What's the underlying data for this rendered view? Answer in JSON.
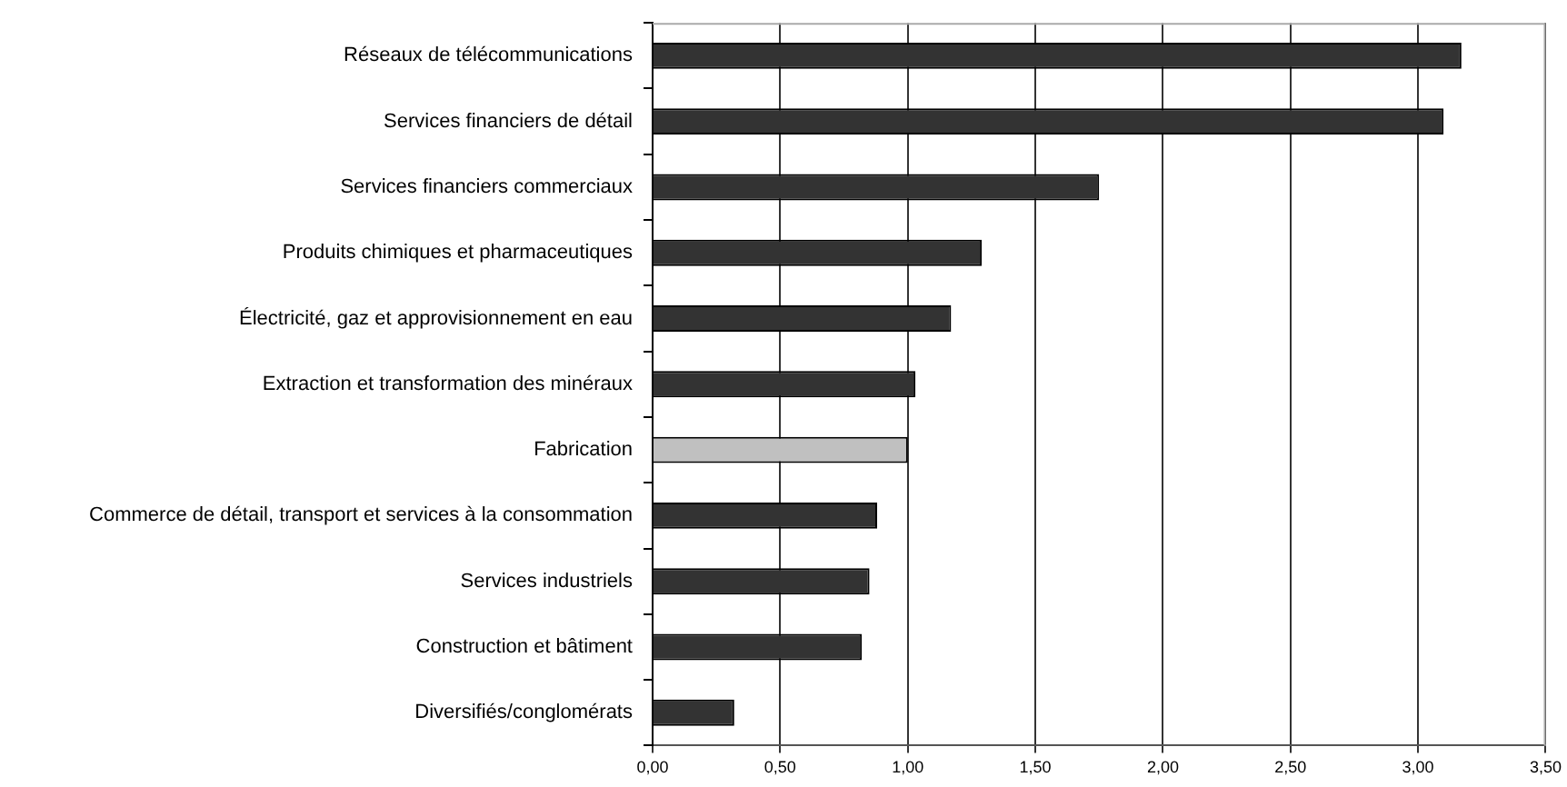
{
  "chart_data": {
    "type": "bar",
    "orientation": "horizontal",
    "categories": [
      "Réseaux de télécommunications",
      "Services financiers de détail",
      "Services financiers commerciaux",
      "Produits chimiques et pharmaceutiques",
      "Électricité, gaz et approvisionnement en eau",
      "Extraction et transformation des minéraux",
      "Fabrication",
      "Commerce de détail, transport et services à la consommation",
      "Services industriels",
      "Construction et bâtiment",
      "Diversifiés/conglomérats"
    ],
    "values": [
      3.17,
      3.1,
      1.75,
      1.29,
      1.17,
      1.03,
      1.0,
      0.88,
      0.85,
      0.82,
      0.32
    ],
    "colors": [
      "#333333",
      "#333333",
      "#333333",
      "#333333",
      "#333333",
      "#333333",
      "#c0c0c0",
      "#333333",
      "#333333",
      "#333333",
      "#333333"
    ],
    "xlim": [
      0,
      3.5
    ],
    "xticks": [
      {
        "value": 0,
        "label": "0,00"
      },
      {
        "value": 0.5,
        "label": "0,50"
      },
      {
        "value": 1,
        "label": "1,00"
      },
      {
        "value": 1.5,
        "label": "1,50"
      },
      {
        "value": 2,
        "label": "2,00"
      },
      {
        "value": 2.5,
        "label": "2,50"
      },
      {
        "value": 3,
        "label": "3,00"
      },
      {
        "value": 3.5,
        "label": "3,50"
      }
    ],
    "grid": "x",
    "legend": false
  }
}
